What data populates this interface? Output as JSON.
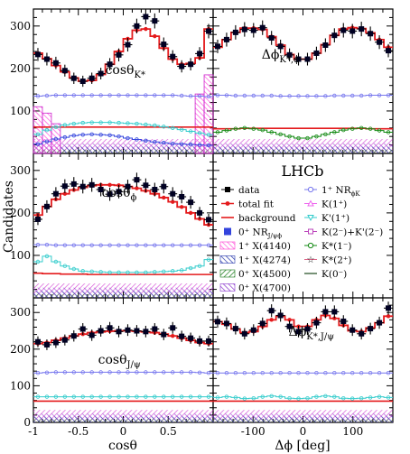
{
  "figure": {
    "experiment": "LHCb",
    "ylabel": "Candidates",
    "xlabel_left": "cosθ",
    "xlabel_right": "Δϕ [deg]"
  },
  "legend": {
    "col1": [
      {
        "label": "data",
        "color": "#000000",
        "marker": "square"
      },
      {
        "label": "total fit",
        "color": "#e41a1c",
        "marker": "dot-line"
      },
      {
        "label": "background",
        "color": "#e41a1c",
        "marker": "line"
      },
      {
        "label": "0⁺ NR",
        "sub": "J/ψϕ",
        "color": "#3344dd",
        "marker": "filled-square"
      },
      {
        "label": "1⁺ X(4140)",
        "color": "#ff33cc",
        "marker": "hatch"
      },
      {
        "label": "1⁺ X(4274)",
        "color": "#2233aa",
        "marker": "hatch"
      },
      {
        "label": "0⁺ X(4500)",
        "color": "#117711",
        "marker": "hatch"
      },
      {
        "label": "0⁺ X(4700)",
        "color": "#8833cc",
        "marker": "hatch"
      }
    ],
    "col2": [
      {
        "label": "1⁺ NR",
        "sub": "ϕK",
        "color": "#7777ee",
        "marker": "open-circle"
      },
      {
        "label": "K(1⁺)",
        "color": "#ee66ee",
        "marker": "open-triangle"
      },
      {
        "label": "K'(1⁺)",
        "color": "#33cccc",
        "marker": "open-triangle-down"
      },
      {
        "label": "K(2⁻)+K'(2⁻)",
        "color": "#bb44bb",
        "marker": "open-square"
      },
      {
        "label": "K*(1⁻)",
        "color": "#118811",
        "marker": "open-circle"
      },
      {
        "label": "K*(2⁺)",
        "color": "#dd6688",
        "marker": "open-star"
      },
      {
        "label": "K(0⁻)",
        "color": "#557755",
        "marker": "line"
      }
    ]
  },
  "chart_data": [
    {
      "type": "scatter",
      "panel": "top-left",
      "title": "cosθ_K*",
      "xlim": [
        -1,
        1
      ],
      "ylim": [
        0,
        340
      ],
      "x": [
        -0.95,
        -0.85,
        -0.75,
        -0.65,
        -0.55,
        -0.45,
        -0.35,
        -0.25,
        -0.15,
        -0.05,
        0.05,
        0.15,
        0.25,
        0.35,
        0.45,
        0.55,
        0.65,
        0.75,
        0.85,
        0.95
      ],
      "series": [
        {
          "name": "data",
          "values": [
            233,
            222,
            213,
            195,
            177,
            170,
            177,
            188,
            210,
            232,
            256,
            300,
            322,
            312,
            257,
            228,
            205,
            210,
            235,
            288
          ]
        },
        {
          "name": "total fit",
          "values": [
            236,
            223,
            207,
            192,
            178,
            170,
            172,
            186,
            210,
            240,
            270,
            290,
            293,
            276,
            248,
            222,
            210,
            212,
            225,
            293
          ]
        },
        {
          "name": "background",
          "values": [
            62,
            62,
            62,
            62,
            62,
            62,
            62,
            62,
            62,
            62,
            62,
            62,
            62,
            62,
            62,
            62,
            62,
            62,
            62,
            62
          ]
        },
        {
          "name": "1⁺ NR_ϕK",
          "values": [
            135,
            136,
            137,
            137,
            137,
            137,
            137,
            137,
            137,
            137,
            137,
            137,
            137,
            137,
            137,
            137,
            136,
            135,
            135,
            134
          ]
        },
        {
          "name": "K'(1⁺)",
          "values": [
            45,
            55,
            62,
            67,
            70,
            72,
            73,
            73,
            73,
            72,
            71,
            70,
            68,
            66,
            63,
            60,
            56,
            52,
            48,
            44
          ]
        },
        {
          "name": "0⁺ NR_J/ψϕ",
          "values": [
            22,
            28,
            34,
            38,
            42,
            44,
            45,
            44,
            43,
            40,
            36,
            33,
            30,
            27,
            25,
            23,
            22,
            21,
            20,
            19
          ]
        },
        {
          "name": "1⁺ X(4140)",
          "values": [
            110,
            95,
            70,
            52,
            45,
            40,
            38,
            36,
            34,
            32,
            30,
            28,
            26,
            24,
            22,
            22,
            25,
            30,
            140,
            185
          ]
        }
      ]
    },
    {
      "type": "scatter",
      "panel": "top-right",
      "title": "Δϕ_K*,ϕ",
      "xlim": [
        -180,
        180
      ],
      "ylim": [
        0,
        340
      ],
      "x": [
        -171,
        -153,
        -135,
        -117,
        -99,
        -81,
        -63,
        -45,
        -27,
        -9,
        9,
        27,
        45,
        63,
        81,
        99,
        117,
        135,
        153,
        171
      ],
      "series": [
        {
          "name": "data",
          "values": [
            252,
            268,
            285,
            292,
            290,
            296,
            272,
            252,
            232,
            222,
            222,
            236,
            255,
            278,
            290,
            288,
            293,
            282,
            262,
            242
          ]
        },
        {
          "name": "total fit",
          "values": [
            250,
            268,
            285,
            295,
            295,
            292,
            275,
            255,
            233,
            222,
            222,
            236,
            256,
            278,
            293,
            296,
            294,
            284,
            268,
            250
          ]
        },
        {
          "name": "background",
          "values": [
            58,
            58,
            58,
            59,
            59,
            59,
            59,
            59,
            59,
            59,
            59,
            59,
            59,
            59,
            59,
            59,
            59,
            58,
            58,
            58
          ]
        },
        {
          "name": "1⁺ NR_ϕK",
          "values": [
            137,
            137,
            136,
            136,
            136,
            136,
            136,
            135,
            135,
            135,
            135,
            135,
            135,
            136,
            136,
            136,
            136,
            137,
            137,
            137
          ]
        },
        {
          "name": "K*(1⁻)",
          "values": [
            50,
            54,
            58,
            60,
            58,
            55,
            50,
            45,
            40,
            36,
            36,
            40,
            45,
            50,
            55,
            58,
            60,
            58,
            54,
            50
          ]
        }
      ]
    },
    {
      "type": "scatter",
      "panel": "middle-left",
      "title": "cosθ_ϕ",
      "xlim": [
        -1,
        1
      ],
      "ylim": [
        0,
        340
      ],
      "x": [
        -0.95,
        -0.85,
        -0.75,
        -0.65,
        -0.55,
        -0.45,
        -0.35,
        -0.25,
        -0.15,
        -0.05,
        0.05,
        0.15,
        0.25,
        0.35,
        0.45,
        0.55,
        0.65,
        0.75,
        0.85,
        0.95
      ],
      "series": [
        {
          "name": "data",
          "values": [
            185,
            215,
            245,
            263,
            268,
            262,
            266,
            255,
            244,
            250,
            262,
            278,
            265,
            255,
            262,
            245,
            238,
            225,
            200,
            184
          ]
        },
        {
          "name": "total fit",
          "values": [
            195,
            215,
            232,
            245,
            254,
            260,
            264,
            266,
            266,
            265,
            262,
            258,
            252,
            245,
            236,
            226,
            214,
            200,
            186,
            172
          ]
        },
        {
          "name": "background",
          "values": [
            58,
            57,
            57,
            56,
            56,
            56,
            55,
            55,
            55,
            55,
            55,
            55,
            55,
            55,
            55,
            55,
            55,
            55,
            55,
            55
          ]
        },
        {
          "name": "1⁺ NR_ϕK",
          "values": [
            125,
            125,
            124,
            124,
            124,
            124,
            124,
            124,
            124,
            124,
            124,
            124,
            124,
            124,
            124,
            124,
            124,
            124,
            124,
            124
          ]
        },
        {
          "name": "K'(1⁺)",
          "values": [
            85,
            98,
            85,
            75,
            68,
            63,
            62,
            61,
            60,
            60,
            60,
            60,
            60,
            61,
            62,
            63,
            65,
            70,
            75,
            90
          ]
        }
      ]
    },
    {
      "type": "scatter",
      "panel": "bottom-left",
      "title": "cosθ_J/ψ",
      "xlim": [
        -1,
        1
      ],
      "ylim": [
        0,
        340
      ],
      "x": [
        -0.95,
        -0.85,
        -0.75,
        -0.65,
        -0.55,
        -0.45,
        -0.35,
        -0.25,
        -0.15,
        -0.05,
        0.05,
        0.15,
        0.25,
        0.35,
        0.45,
        0.55,
        0.65,
        0.75,
        0.85,
        0.95
      ],
      "series": [
        {
          "name": "data",
          "values": [
            220,
            212,
            218,
            225,
            236,
            255,
            238,
            250,
            258,
            248,
            252,
            250,
            248,
            255,
            240,
            258,
            235,
            230,
            222,
            222
          ]
        },
        {
          "name": "total fit",
          "values": [
            215,
            218,
            224,
            230,
            236,
            241,
            245,
            247,
            249,
            250,
            250,
            249,
            247,
            245,
            241,
            236,
            230,
            224,
            218,
            215
          ]
        },
        {
          "name": "background",
          "values": [
            58,
            58,
            58,
            58,
            58,
            58,
            58,
            58,
            58,
            58,
            58,
            58,
            58,
            58,
            58,
            58,
            58,
            58,
            58,
            58
          ]
        },
        {
          "name": "1⁺ NR_ϕK",
          "values": [
            135,
            136,
            137,
            137,
            137,
            137,
            137,
            137,
            137,
            137,
            137,
            137,
            137,
            137,
            137,
            137,
            137,
            137,
            136,
            135
          ]
        },
        {
          "name": "K'(1⁺)",
          "values": [
            70,
            70,
            70,
            70,
            70,
            70,
            70,
            70,
            70,
            70,
            70,
            70,
            70,
            70,
            70,
            70,
            70,
            70,
            70,
            70
          ]
        }
      ]
    },
    {
      "type": "scatter",
      "panel": "bottom-right",
      "title": "Δϕ_K*,J/ψ",
      "xlim": [
        -180,
        180
      ],
      "ylim": [
        0,
        340
      ],
      "x": [
        -171,
        -153,
        -135,
        -117,
        -99,
        -81,
        -63,
        -45,
        -27,
        -9,
        9,
        27,
        45,
        63,
        81,
        99,
        117,
        135,
        153,
        171
      ],
      "series": [
        {
          "name": "data",
          "values": [
            275,
            270,
            256,
            242,
            252,
            270,
            305,
            292,
            262,
            248,
            255,
            272,
            302,
            302,
            276,
            252,
            242,
            256,
            272,
            312
          ]
        },
        {
          "name": "total fit",
          "values": [
            275,
            268,
            255,
            245,
            248,
            262,
            280,
            290,
            280,
            262,
            262,
            280,
            292,
            284,
            265,
            250,
            248,
            258,
            272,
            290
          ]
        },
        {
          "name": "background",
          "values": [
            58,
            58,
            58,
            58,
            58,
            58,
            58,
            58,
            58,
            58,
            58,
            58,
            58,
            58,
            58,
            58,
            58,
            58,
            58,
            58
          ]
        },
        {
          "name": "1⁺ NR_ϕK",
          "values": [
            135,
            135,
            135,
            135,
            135,
            135,
            135,
            135,
            135,
            135,
            135,
            135,
            135,
            135,
            135,
            135,
            135,
            135,
            135,
            135
          ]
        },
        {
          "name": "K'(1⁺)",
          "values": [
            68,
            70,
            68,
            65,
            66,
            70,
            72,
            70,
            66,
            65,
            66,
            70,
            72,
            70,
            66,
            65,
            66,
            68,
            70,
            68
          ]
        }
      ]
    }
  ],
  "ticks": {
    "y": [
      0,
      100,
      200,
      300
    ],
    "cos": [
      -1,
      -0.5,
      0,
      0.5
    ],
    "phi": [
      -100,
      0,
      100
    ]
  }
}
